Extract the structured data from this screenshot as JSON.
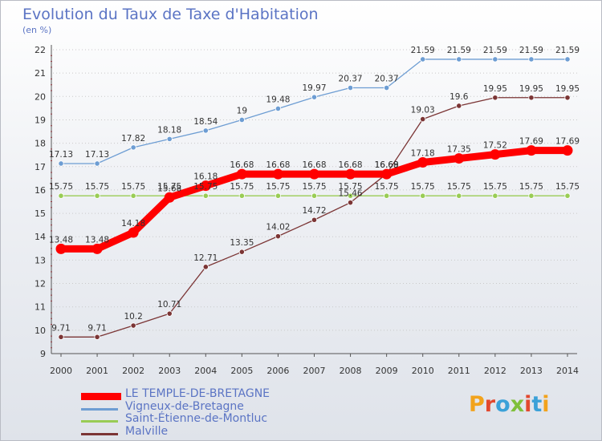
{
  "title": "Evolution du Taux de Taxe d'Habitation",
  "subtitle": "(en %)",
  "logo": {
    "text": "Proxiti",
    "colors": [
      "#f2a31c",
      "#e2482e",
      "#3ba1d8",
      "#7fbf3a",
      "#e2482e",
      "#3ba1d8",
      "#f2a31c"
    ]
  },
  "chart_data": {
    "type": "line",
    "x": [
      2000,
      2001,
      2002,
      2003,
      2004,
      2005,
      2006,
      2007,
      2008,
      2009,
      2010,
      2011,
      2012,
      2013,
      2014
    ],
    "x_tick_labels": [
      "2000",
      "2001",
      "2002",
      "2003",
      "2004",
      "2005",
      "2006",
      "2007",
      "2008",
      "2009",
      "2010",
      "2011",
      "2012",
      "2013",
      "2014"
    ],
    "ylim": [
      9,
      22
    ],
    "y_ticks": [
      9,
      10,
      11,
      12,
      13,
      14,
      15,
      16,
      17,
      18,
      19,
      20,
      21,
      22
    ],
    "y_tick_labels": [
      "9",
      "10",
      "11",
      "12",
      "13",
      "14",
      "15",
      "16",
      "17",
      "18",
      "19",
      "20",
      "21",
      "22"
    ],
    "grid": "horizontal dotted",
    "legend_placement": "bottom-left",
    "series": [
      {
        "name": "LE TEMPLE-DE-BRETAGNE",
        "color": "#ff0000",
        "values": [
          13.48,
          13.48,
          14.18,
          15.68,
          16.18,
          16.68,
          16.68,
          16.68,
          16.68,
          16.68,
          17.18,
          17.35,
          17.52,
          17.69,
          17.69
        ],
        "labels": [
          "13.48",
          "13.48",
          "14.18",
          "15.68",
          "16.18",
          "16.68",
          "16.68",
          "16.68",
          "16.68",
          "16.68",
          "17.18",
          "17.35",
          "17.52",
          "17.69",
          "17.69"
        ]
      },
      {
        "name": "Vigneux-de-Bretagne",
        "color": "#6d9dd3",
        "values": [
          17.13,
          17.13,
          17.82,
          18.18,
          18.54,
          19.0,
          19.48,
          19.97,
          20.37,
          20.37,
          21.59,
          21.59,
          21.59,
          21.59,
          21.59
        ],
        "labels": [
          "17.13",
          "17.13",
          "17.82",
          "18.18",
          "18.54",
          "19",
          "19.48",
          "19.97",
          "20.37",
          "20.37",
          "21.59",
          "21.59",
          "21.59",
          "21.59",
          "21.59"
        ]
      },
      {
        "name": "Saint-Étienne-de-Montluc",
        "color": "#99cc55",
        "values": [
          15.75,
          15.75,
          15.75,
          15.75,
          15.75,
          15.75,
          15.75,
          15.75,
          15.75,
          15.75,
          15.75,
          15.75,
          15.75,
          15.75,
          15.75
        ],
        "labels": [
          "15.75",
          "15.75",
          "15.75",
          "15.75",
          "15.75",
          "15.75",
          "15.75",
          "15.75",
          "15.75",
          "15.75",
          "15.75",
          "15.75",
          "15.75",
          "15.75",
          "15.75"
        ]
      },
      {
        "name": "Malville",
        "color": "#7b3535",
        "values": [
          9.71,
          9.71,
          10.2,
          10.71,
          12.71,
          13.35,
          14.02,
          14.72,
          15.46,
          16.69,
          19.03,
          19.6,
          19.95,
          19.95,
          19.95
        ],
        "labels": [
          "9.71",
          "9.71",
          "10.2",
          "10.71",
          "12.71",
          "13.35",
          "14.02",
          "14.72",
          "15.46",
          "16.69",
          "19.03",
          "19.6",
          "19.95",
          "19.95",
          "19.95"
        ]
      }
    ]
  }
}
